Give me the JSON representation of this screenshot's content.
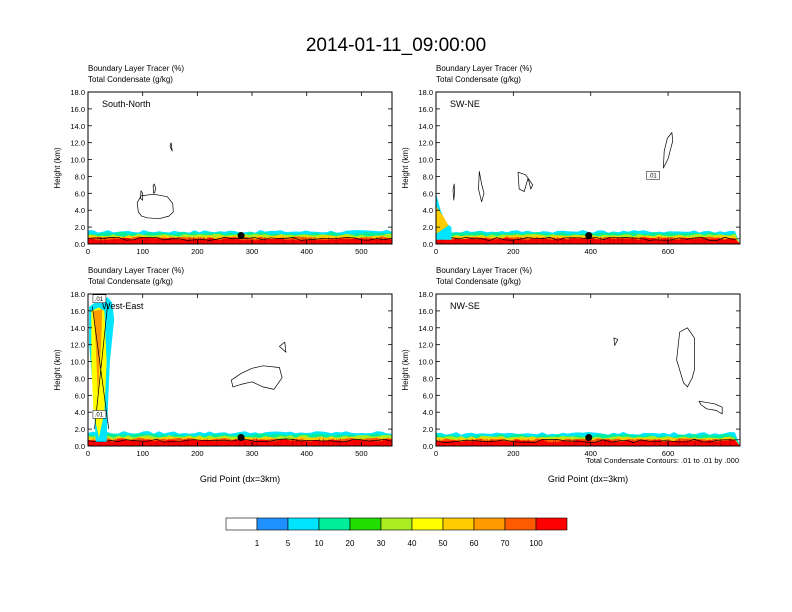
{
  "figure": {
    "title": "2014-01-11_09:00:00",
    "footnote": "Total Condensate Contours: .01 to .01 by .000"
  },
  "chart_data": [
    {
      "type": "heatmap",
      "panel_label": "South-North",
      "left_title": [
        "Boundary Layer Tracer   (%)",
        "Total Condensate   (g/kg)"
      ],
      "ylabel": "Height (km)",
      "xlabel": "",
      "xlim": [
        0,
        556
      ],
      "ylim": [
        0,
        18
      ],
      "xticks": [
        0,
        100,
        200,
        300,
        400,
        500
      ],
      "yticks": [
        "0.0",
        "2.0",
        "4.0",
        "6.0",
        "8.0",
        "10.0",
        "12.0",
        "14.0",
        "16.0",
        "18.0"
      ],
      "tracer_top_km": 1.5,
      "marker": [
        280,
        1.0
      ],
      "contour_labels": []
    },
    {
      "type": "heatmap",
      "panel_label": "SW-NE",
      "left_title": [
        "Boundary Layer Tracer   (%)",
        "Total Condensate   (g/kg)"
      ],
      "ylabel": "Height (km)",
      "xlabel": "",
      "xlim": [
        0,
        786
      ],
      "ylim": [
        0,
        18
      ],
      "xticks": [
        0,
        200,
        400,
        600
      ],
      "yticks": [
        "0.0",
        "2.0",
        "4.0",
        "6.0",
        "8.0",
        "10.0",
        "12.0",
        "14.0",
        "16.0",
        "18.0"
      ],
      "tracer_top_km": 1.5,
      "marker": [
        395,
        1.0
      ],
      "contour_labels": [
        ".01"
      ]
    },
    {
      "type": "heatmap",
      "panel_label": "West-East",
      "left_title": [
        "Boundary Layer Tracer   (%)",
        "Total Condensate   (g/kg)"
      ],
      "ylabel": "Height (km)",
      "xlabel": "Grid Point (dx=3km)",
      "xlim": [
        0,
        556
      ],
      "ylim": [
        0,
        18
      ],
      "xticks": [
        0,
        100,
        200,
        300,
        400,
        500
      ],
      "yticks": [
        "0.0",
        "2.0",
        "4.0",
        "6.0",
        "8.0",
        "10.0",
        "12.0",
        "14.0",
        "16.0",
        "18.0"
      ],
      "tracer_top_km": 1.6,
      "marker": [
        280,
        1.0
      ],
      "contour_labels": [
        ".01",
        ".01"
      ]
    },
    {
      "type": "heatmap",
      "panel_label": "NW-SE",
      "left_title": [
        "Boundary Layer Tracer   (%)",
        "Total Condensate   (g/kg)"
      ],
      "ylabel": "Height (km)",
      "xlabel": "Grid Point (dx=3km)",
      "xlim": [
        0,
        786
      ],
      "ylim": [
        0,
        18
      ],
      "xticks": [
        0,
        200,
        400,
        600
      ],
      "yticks": [
        "0.0",
        "2.0",
        "4.0",
        "6.0",
        "8.0",
        "10.0",
        "12.0",
        "14.0",
        "16.0",
        "18.0"
      ],
      "tracer_top_km": 1.5,
      "marker": [
        395,
        1.0
      ],
      "contour_labels": []
    }
  ],
  "colorbar": {
    "colors": [
      "#ffffff",
      "#1e90ff",
      "#00e5ff",
      "#00ee9a",
      "#22dd00",
      "#aaee22",
      "#ffff00",
      "#ffcc00",
      "#ff9a00",
      "#ff5a00",
      "#ff0000"
    ],
    "labels": [
      "1",
      "5",
      "10",
      "20",
      "30",
      "40",
      "50",
      "60",
      "70",
      "100"
    ]
  }
}
